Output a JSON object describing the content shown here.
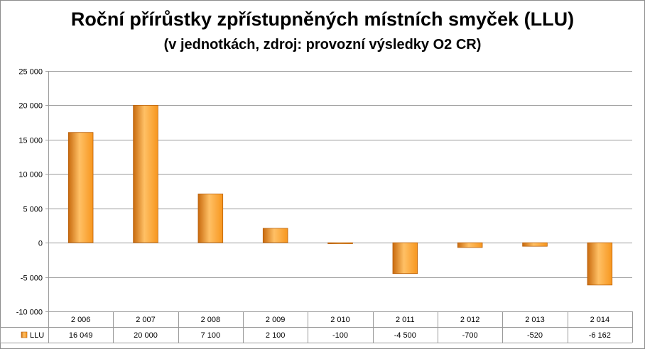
{
  "chart_data": {
    "type": "bar",
    "title": "Roční přírůstky  zpřístupněných místních smyček (LLU)",
    "subtitle": "(v jednotkách, zdroj: provozní výsledky O2 CR)",
    "categories": [
      "2 006",
      "2 007",
      "2 008",
      "2 009",
      "2 010",
      "2 011",
      "2 012",
      "2 013",
      "2 014"
    ],
    "series": [
      {
        "name": "LLU",
        "values": [
          16049,
          20000,
          7100,
          2100,
          -100,
          -4500,
          -700,
          -520,
          -6162
        ],
        "value_labels": [
          "16 049",
          "20 000",
          "7 100",
          "2 100",
          "-100",
          "-4 500",
          "-700",
          "-520",
          "-6 162"
        ]
      }
    ],
    "ylim": [
      -10000,
      25000
    ],
    "yticks": [
      25000,
      20000,
      15000,
      10000,
      5000,
      0,
      -5000,
      -10000
    ],
    "ytick_labels": [
      "25 000",
      "20 000",
      "15 000",
      "10 000",
      "5 000",
      "0",
      "-5 000",
      "-10 000"
    ],
    "grid": true,
    "legend": "data table below the chart",
    "colors": {
      "bar_light": "#ffc065",
      "bar_mid": "#f7961e",
      "bar_dark": "#c86a0e",
      "bar_edge": "#b8600c",
      "grid": "#9a9a9a",
      "frame": "#8c8c8c"
    }
  }
}
